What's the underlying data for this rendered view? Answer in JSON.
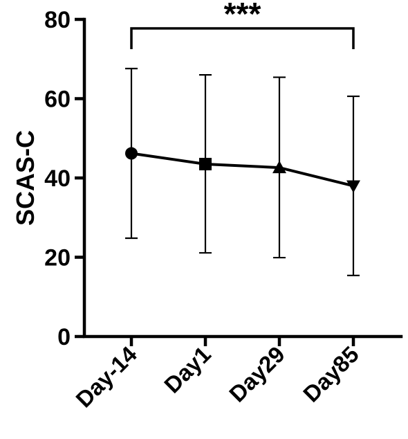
{
  "chart_data": {
    "type": "line",
    "title": "",
    "xlabel": "",
    "ylabel": "SCAS-C",
    "ylim": [
      0,
      80
    ],
    "yticks": [
      0,
      20,
      40,
      60,
      80
    ],
    "categories": [
      "Day-14",
      "Day1",
      "Day29",
      "Day85"
    ],
    "series": [
      {
        "values": [
          46.2,
          43.5,
          42.6,
          38.0
        ],
        "error_upper": [
          67.6,
          66.0,
          65.4,
          60.6
        ],
        "error_lower": [
          24.8,
          21.1,
          19.9,
          15.4
        ],
        "markers": [
          "circle",
          "square",
          "triangle-up",
          "triangle-down"
        ]
      }
    ],
    "annotations": [
      {
        "text": "***",
        "from": "Day-14",
        "to": "Day85"
      }
    ],
    "grid": false
  }
}
